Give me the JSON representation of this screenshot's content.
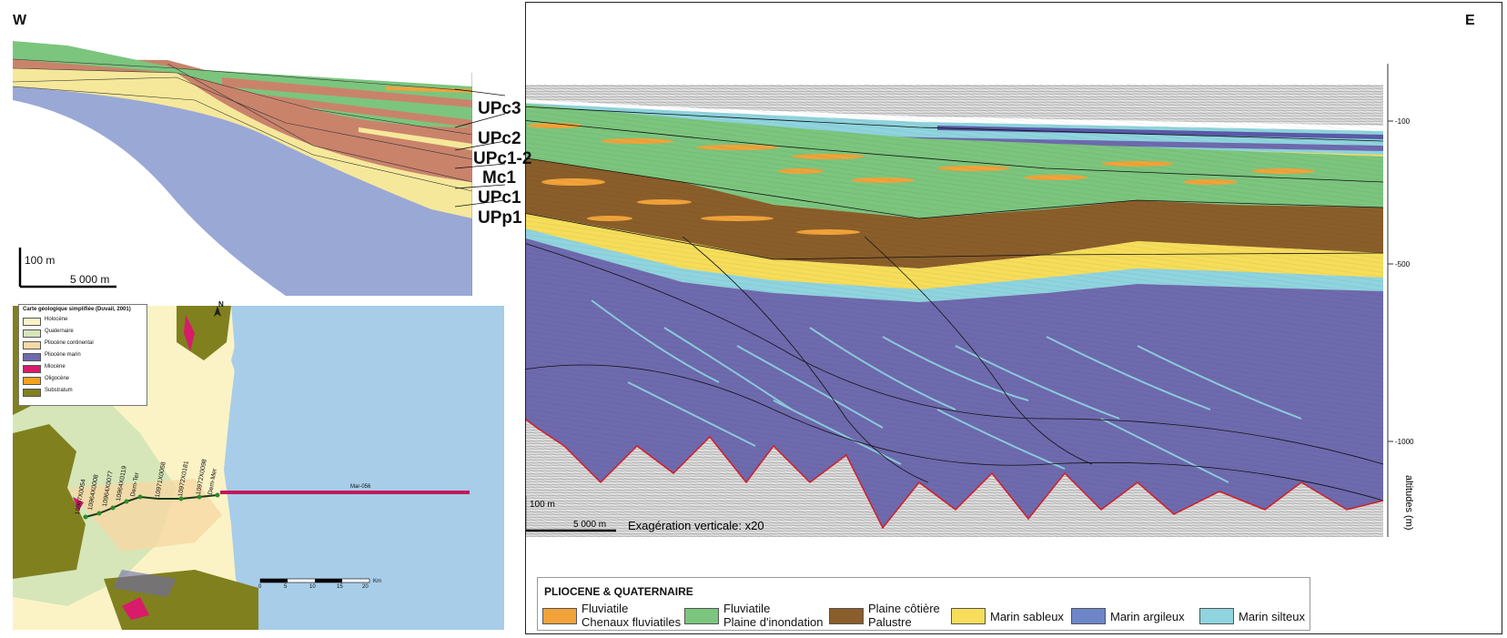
{
  "directions": {
    "west": "W",
    "east": "E"
  },
  "units": [
    "UPc3",
    "UPc2",
    "UPc1-2",
    "Mc1",
    "UPc1",
    "UPp1"
  ],
  "cross_section_scale": {
    "vertical": "100 m",
    "horizontal": "5 000 m"
  },
  "seismic_scale": {
    "vertical": "100 m",
    "horizontal": "5 000 m",
    "exaggeration": "Exagération verticale: x20"
  },
  "seismic_axis": {
    "label": "altitudes (m)",
    "ticks": [
      "-100",
      "-500",
      "-1000"
    ]
  },
  "map": {
    "legend_title": "Carte géologique simplifiée (Duvail, 2001)",
    "legend_items": [
      {
        "label": "Holocène",
        "color": "#fbf3c6"
      },
      {
        "label": "Quaternaire",
        "color": "#d6e6b8"
      },
      {
        "label": "Pliocène continental",
        "color": "#f6d8a4"
      },
      {
        "label": "Pliocène marin",
        "color": "#6e6aae"
      },
      {
        "label": "Miocène",
        "color": "#d81b6a"
      },
      {
        "label": "Oligocène",
        "color": "#f3a21c"
      },
      {
        "label": "Substratum",
        "color": "#80801f"
      }
    ],
    "north": "N",
    "profile_label": "Mar-056",
    "wells": [
      "10967X0054",
      "10964X0008",
      "10964X0077",
      "10964X0119",
      "Dem-Ter",
      "10971X0058",
      "10972X0181",
      "10972X0098",
      "Dem-Mer"
    ],
    "scale_ticks": [
      "0",
      "5",
      "10",
      "15",
      "20",
      "Km"
    ]
  },
  "legend": {
    "title": "PLIOCENE & QUATERNAIRE",
    "items": [
      {
        "line1": "Fluviatile",
        "line2": "Chenaux fluviatiles",
        "color": "#f1a33a"
      },
      {
        "line1": "Fluviatile",
        "line2": "Plaine d'inondation",
        "color": "#7cc57e"
      },
      {
        "line1": "Plaine côtière",
        "line2": "Palustre",
        "color": "#8a5e2a"
      },
      {
        "line1": "Marin sableux",
        "line2": "",
        "color": "#f6dd5a"
      },
      {
        "line1": "Marin argileux",
        "line2": "",
        "color": "#6e86c8"
      },
      {
        "line1": "Marin silteux",
        "line2": "",
        "color": "#8fd4de"
      }
    ]
  }
}
